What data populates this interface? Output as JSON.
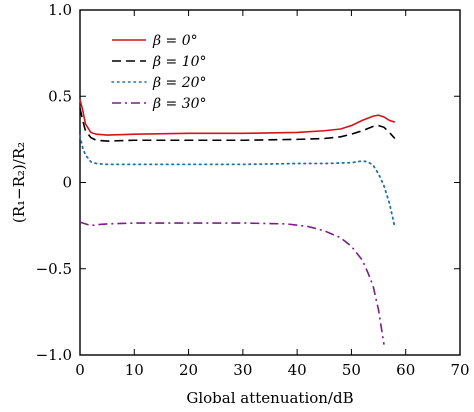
{
  "chart_data": {
    "type": "line",
    "title": "",
    "xlabel": "Global attenuation/dB",
    "ylabel": "(R₁−R₂)/R₂",
    "xlim": [
      0,
      70
    ],
    "ylim": [
      -1.0,
      1.0
    ],
    "xticks": [
      0,
      10,
      20,
      30,
      40,
      50,
      60,
      70
    ],
    "yticks": [
      -1.0,
      -0.5,
      0,
      0.5,
      1.0
    ],
    "xtick_labels": [
      "0",
      "10",
      "20",
      "30",
      "40",
      "50",
      "60",
      "70"
    ],
    "ytick_labels": [
      "−1.0",
      "−0.5",
      "0",
      "0.5",
      "1.0"
    ],
    "grid": false,
    "legend_position": "top-left",
    "series": [
      {
        "name": "β = 0°",
        "color": "#d4141c",
        "style": "solid",
        "x": [
          0,
          0.5,
          1,
          2,
          3,
          5,
          10,
          20,
          30,
          40,
          45,
          48,
          50,
          52,
          54,
          55,
          56,
          57,
          58
        ],
        "y": [
          0.48,
          0.42,
          0.34,
          0.29,
          0.28,
          0.275,
          0.28,
          0.285,
          0.285,
          0.29,
          0.3,
          0.31,
          0.33,
          0.36,
          0.385,
          0.39,
          0.38,
          0.36,
          0.35
        ]
      },
      {
        "name": "β = 10°",
        "color": "#000000",
        "style": "dashed",
        "x": [
          0,
          0.5,
          1,
          2,
          3,
          5,
          10,
          20,
          30,
          40,
          45,
          48,
          50,
          52,
          54,
          55,
          56,
          57,
          58
        ],
        "y": [
          0.43,
          0.36,
          0.3,
          0.26,
          0.245,
          0.24,
          0.245,
          0.245,
          0.245,
          0.25,
          0.255,
          0.265,
          0.28,
          0.3,
          0.325,
          0.33,
          0.32,
          0.29,
          0.255
        ]
      },
      {
        "name": "β = 20°",
        "color": "#1f6fb2",
        "style": "dotted",
        "x": [
          0,
          0.5,
          1,
          2,
          3,
          5,
          10,
          20,
          30,
          40,
          45,
          50,
          52,
          53,
          54,
          55,
          56,
          57,
          58
        ],
        "y": [
          0.27,
          0.2,
          0.16,
          0.12,
          0.11,
          0.105,
          0.105,
          0.105,
          0.105,
          0.11,
          0.11,
          0.115,
          0.125,
          0.12,
          0.1,
          0.05,
          -0.02,
          -0.12,
          -0.26
        ]
      },
      {
        "name": "β = 30°",
        "color": "#7b1d8a",
        "style": "dashdot",
        "x": [
          0,
          1,
          2,
          3,
          5,
          10,
          20,
          30,
          38,
          42,
          45,
          48,
          50,
          52,
          53,
          54,
          55,
          55.5,
          56
        ],
        "y": [
          -0.23,
          -0.24,
          -0.25,
          -0.245,
          -0.24,
          -0.235,
          -0.235,
          -0.235,
          -0.24,
          -0.255,
          -0.28,
          -0.32,
          -0.37,
          -0.45,
          -0.52,
          -0.6,
          -0.74,
          -0.84,
          -0.94
        ]
      }
    ]
  }
}
